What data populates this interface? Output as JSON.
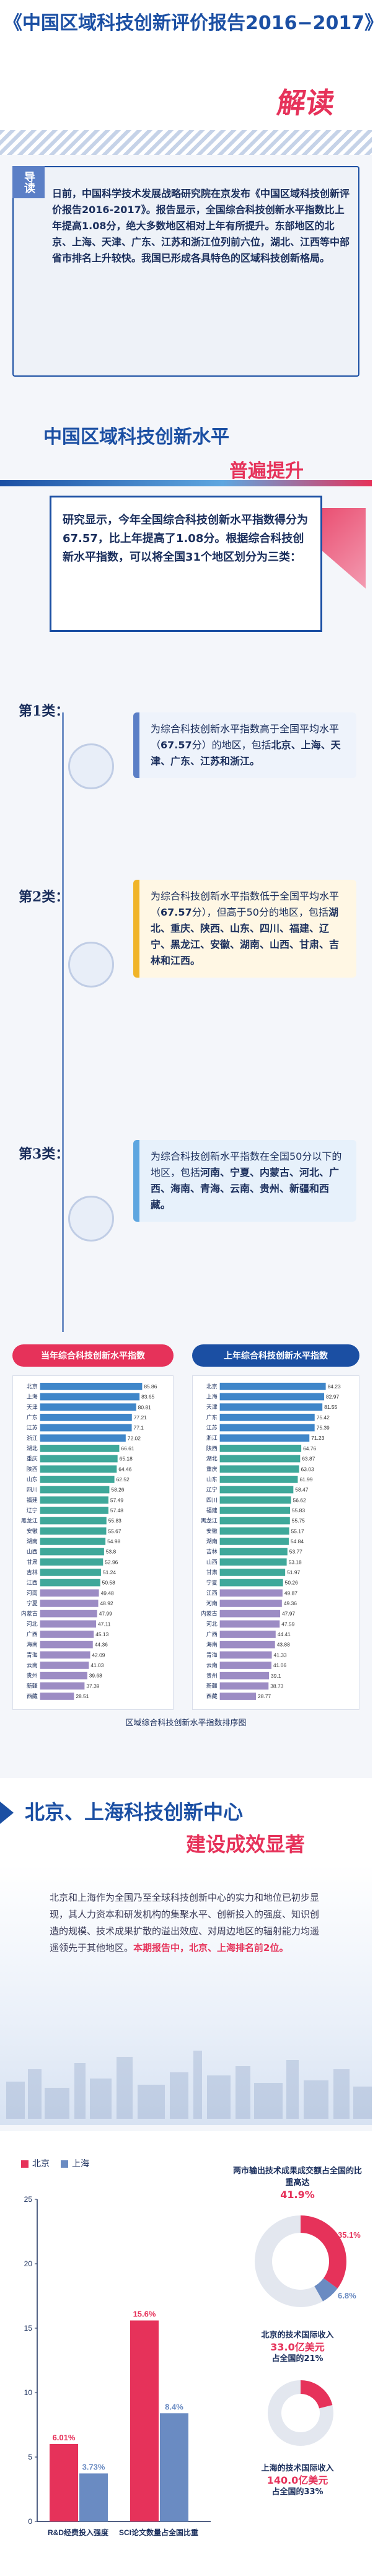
{
  "header": {
    "title": "《中国区域科技创新评价报告2016−2017》",
    "subtitle": "解读"
  },
  "intro": {
    "tag": "导读",
    "text": "日前，中国科学技术发展战略研究院在京发布《中国区域科技创新评价报告2016-2017》。报告显示，全国综合科技创新水平指数比上年提高1.08分，绝大多数地区相对上年有所提升。东部地区的北京、上海、天津、广东、江苏和浙江位列前六位，湖北、江西等中部省市排名上升较快。我国已形成各具特色的区域科技创新格局。"
  },
  "section1": {
    "title": "中国区域科技创新水平",
    "subtitle": "普遍提升",
    "summary": "研究显示，今年全国综合科技创新水平指数得分为67.57，比上年提高了1.08分。根据综合科技创新水平指数，可以将全国31个地区划分为三类："
  },
  "categories": [
    {
      "num": "1",
      "label": "第1类：",
      "text_a": "为综合科技创新水平指数高于全国平均水平（",
      "value": "67.57",
      "text_b": "分）的地区，包括",
      "regions": "北京、上海、天津、广东、江苏和浙江。"
    },
    {
      "num": "2",
      "label": "第2类：",
      "text_a": "为综合科技创新水平指数低于全国平均水平（",
      "value": "67.57",
      "text_b": "分），但高于50分的地区，包括",
      "regions": "湖北、重庆、陕西、山东、四川、福建、辽宁、黑龙江、安徽、湖南、山西、甘肃、吉林和江西。"
    },
    {
      "num": "3",
      "label": "第3类：",
      "text_a": "为综合科技创新水平指数在全国50分以下的地区，包括",
      "value": "",
      "text_b": "",
      "regions": "河南、宁夏、内蒙古、河北、广西、海南、青海、云南、贵州、新疆和西藏。"
    }
  ],
  "rankings": {
    "left_title": "当年综合科技创新水平指数",
    "right_title": "上年综合科技创新水平指数",
    "caption": "区域综合科技创新水平指数排序图",
    "colors": {
      "cat1": "#3f86c9",
      "cat2": "#3fa89a",
      "cat3": "#9c8cc4"
    },
    "current": [
      {
        "region": "北京",
        "v": 85.86
      },
      {
        "region": "上海",
        "v": 83.65
      },
      {
        "region": "天津",
        "v": 80.81
      },
      {
        "region": "广东",
        "v": 77.21
      },
      {
        "region": "江苏",
        "v": 77.1
      },
      {
        "region": "浙江",
        "v": 72.02
      },
      {
        "region": "湖北",
        "v": 66.61
      },
      {
        "region": "重庆",
        "v": 65.18
      },
      {
        "region": "陕西",
        "v": 64.46
      },
      {
        "region": "山东",
        "v": 62.52
      },
      {
        "region": "四川",
        "v": 58.26
      },
      {
        "region": "福建",
        "v": 57.49
      },
      {
        "region": "辽宁",
        "v": 57.48
      },
      {
        "region": "黑龙江",
        "v": 55.83
      },
      {
        "region": "安徽",
        "v": 55.67
      },
      {
        "region": "湖南",
        "v": 54.98
      },
      {
        "region": "山西",
        "v": 53.8
      },
      {
        "region": "甘肃",
        "v": 52.96
      },
      {
        "region": "吉林",
        "v": 51.24
      },
      {
        "region": "江西",
        "v": 50.58
      },
      {
        "region": "河南",
        "v": 49.48
      },
      {
        "region": "宁夏",
        "v": 48.92
      },
      {
        "region": "内蒙古",
        "v": 47.99
      },
      {
        "region": "河北",
        "v": 47.11
      },
      {
        "region": "广西",
        "v": 45.13
      },
      {
        "region": "海南",
        "v": 44.36
      },
      {
        "region": "青海",
        "v": 42.09
      },
      {
        "region": "云南",
        "v": 41.03
      },
      {
        "region": "贵州",
        "v": 39.68
      },
      {
        "region": "新疆",
        "v": 37.39
      },
      {
        "region": "西藏",
        "v": 28.51
      }
    ],
    "previous": [
      {
        "region": "北京",
        "v": 84.23
      },
      {
        "region": "上海",
        "v": 82.97
      },
      {
        "region": "天津",
        "v": 81.55
      },
      {
        "region": "广东",
        "v": 75.42
      },
      {
        "region": "江苏",
        "v": 75.39
      },
      {
        "region": "浙江",
        "v": 71.23
      },
      {
        "region": "陕西",
        "v": 64.76
      },
      {
        "region": "湖北",
        "v": 63.87
      },
      {
        "region": "重庆",
        "v": 63.03
      },
      {
        "region": "山东",
        "v": 61.99
      },
      {
        "region": "辽宁",
        "v": 58.47
      },
      {
        "region": "四川",
        "v": 56.62
      },
      {
        "region": "福建",
        "v": 55.83
      },
      {
        "region": "黑龙江",
        "v": 55.75
      },
      {
        "region": "安徽",
        "v": 55.17
      },
      {
        "region": "湖南",
        "v": 54.84
      },
      {
        "region": "吉林",
        "v": 53.77
      },
      {
        "region": "山西",
        "v": 53.18
      },
      {
        "region": "甘肃",
        "v": 51.97
      },
      {
        "region": "宁夏",
        "v": 50.26
      },
      {
        "region": "江西",
        "v": 49.87
      },
      {
        "region": "河南",
        "v": 49.36
      },
      {
        "region": "内蒙古",
        "v": 47.97
      },
      {
        "region": "河北",
        "v": 47.59
      },
      {
        "region": "广西",
        "v": 44.41
      },
      {
        "region": "海南",
        "v": 43.88
      },
      {
        "region": "青海",
        "v": 41.33
      },
      {
        "region": "云南",
        "v": 41.06
      },
      {
        "region": "贵州",
        "v": 39.1
      },
      {
        "region": "新疆",
        "v": 38.73
      },
      {
        "region": "西藏",
        "v": 28.77
      }
    ]
  },
  "section2": {
    "title": "北京、上海科技创新中心",
    "subtitle": "建设成效显著",
    "text": "北京和上海作为全国乃至全球科技创新中心的实力和地位已初步显现，其人力资本和研发机构的集聚水平、创新投入的强度、知识创造的规模、技术成果扩散的溢出效应、对周边地区的辐射能力均遥遥领先于其他地区。",
    "highlight": "本期报告中，北京、上海排名前2位。"
  },
  "chart_data": [
    {
      "type": "bar",
      "categories": [
        "R&D经费投入强度",
        "SCI论文数量占全国比重"
      ],
      "series": [
        {
          "name": "北京",
          "values": [
            6.01,
            15.6
          ]
        },
        {
          "name": "上海",
          "values": [
            3.73,
            8.4
          ]
        }
      ],
      "ylim": [
        0,
        25
      ],
      "yticks": [
        0,
        5,
        10,
        15,
        20,
        25
      ],
      "value_labels": [
        [
          "6.01%",
          "15.6%"
        ],
        [
          "3.73%",
          "8.4%"
        ]
      ]
    }
  ],
  "bottom": {
    "legend": [
      {
        "name": "北京",
        "color": "#e6325a"
      },
      {
        "name": "上海",
        "color": "#6a8bc2"
      }
    ],
    "donut1": {
      "title": "两市输出技术成果成交额占全国的比重高达",
      "total": "41.9%",
      "beijing": "35.1%",
      "shanghai": "6.8%"
    },
    "donut2": {
      "title": "北京的技术国际收入",
      "amount": "33.0亿美元",
      "share": "占全国的21%"
    },
    "donut3": {
      "title": "上海的技术国际收入",
      "amount": "140.0亿美元",
      "share": "占全国的33%"
    }
  }
}
